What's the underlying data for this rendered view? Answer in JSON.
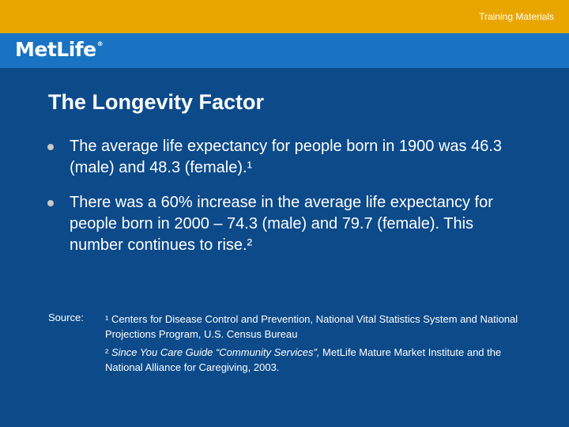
{
  "header": {
    "label": "Training Materials",
    "accent_color": "#e9a600",
    "band_color": "#1a73c2",
    "background_color": "#0c4a8a"
  },
  "logo": {
    "text": "MetLife",
    "mark": "®"
  },
  "slide": {
    "title": "The Longevity Factor",
    "bullets": [
      "The average life expectancy for people born in 1900 was 46.3 (male) and 48.3 (female).¹",
      "There was a 60% increase in the average life expectancy for people born in 2000 – 74.3 (male) and 79.7 (female). This number continues to rise.²"
    ]
  },
  "sources": {
    "label": "Source:",
    "note1": "¹ Centers for Disease Control and Prevention, National Vital Statistics System and National Projections Program, U.S. Census Bureau",
    "note2_prefix": "² ",
    "note2_italic": "Since You Care Guide “Community Services”,",
    "note2_rest": " MetLife Mature Market Institute and the National Alliance for Caregiving, 2003."
  }
}
